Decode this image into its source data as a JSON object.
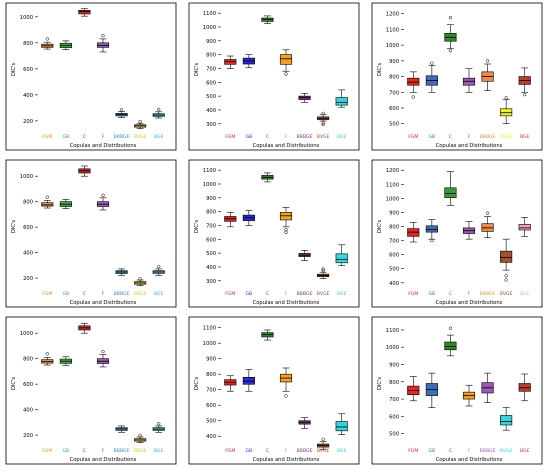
{
  "figure": {
    "panels": 9,
    "layout": "3x3 grid"
  },
  "chart_data": [
    {
      "type": "box",
      "ylabel": "DIC's",
      "xlabel": "Copulas and Distributions",
      "yticks": [
        200,
        400,
        600,
        800,
        1000
      ],
      "ylim": [
        130,
        1060
      ],
      "categories": [
        "FGM",
        "GB",
        "C",
        "F",
        "BBBGE",
        "BVGE",
        "BGE"
      ],
      "colors": [
        "#f28a1f",
        "#3cae3c",
        "#d62728",
        "#9b59b6",
        "#2f8fb8",
        "#e8c21a",
        "#38b7c8"
      ],
      "boxes": [
        {
          "min": 752,
          "q1": 765,
          "median": 777,
          "q3": 790,
          "max": 805,
          "outliers": [
            830
          ]
        },
        {
          "min": 748,
          "q1": 763,
          "median": 780,
          "q3": 797,
          "max": 815,
          "outliers": []
        },
        {
          "min": 1005,
          "q1": 1022,
          "median": 1040,
          "q3": 1050,
          "max": 1062,
          "outliers": []
        },
        {
          "min": 730,
          "q1": 765,
          "median": 780,
          "q3": 800,
          "max": 830,
          "outliers": [
            855
          ]
        },
        {
          "min": 225,
          "q1": 238,
          "median": 248,
          "q3": 258,
          "max": 272,
          "outliers": [
            285
          ]
        },
        {
          "min": 140,
          "q1": 152,
          "median": 162,
          "q3": 170,
          "max": 182,
          "outliers": [
            195
          ]
        },
        {
          "min": 222,
          "q1": 235,
          "median": 245,
          "q3": 255,
          "max": 270,
          "outliers": [
            288
          ]
        }
      ]
    },
    {
      "type": "box",
      "ylabel": "DIC's",
      "xlabel": "Copulas and Distributions",
      "yticks": [
        300,
        400,
        500,
        600,
        700,
        800,
        900,
        1000,
        1100
      ],
      "ylim": [
        255,
        1130
      ],
      "categories": [
        "FGM",
        "GB",
        "C",
        "F",
        "BBBGE",
        "BVGE",
        "BGE"
      ],
      "colors": [
        "#e8241e",
        "#2a2ae0",
        "#2e8b22",
        "#f5a21a",
        "#7b2f86",
        "#a0522d",
        "#33d6e0"
      ],
      "boxes": [
        {
          "min": 700,
          "q1": 730,
          "median": 750,
          "q3": 765,
          "max": 790,
          "outliers": []
        },
        {
          "min": 705,
          "q1": 732,
          "median": 755,
          "q3": 775,
          "max": 800,
          "outliers": []
        },
        {
          "min": 1025,
          "q1": 1040,
          "median": 1055,
          "q3": 1065,
          "max": 1080,
          "outliers": []
        },
        {
          "min": 680,
          "q1": 730,
          "median": 770,
          "q3": 800,
          "max": 835,
          "outliers": [
            660
          ]
        },
        {
          "min": 455,
          "q1": 475,
          "median": 490,
          "q3": 500,
          "max": 520,
          "outliers": []
        },
        {
          "min": 320,
          "q1": 330,
          "median": 340,
          "q3": 350,
          "max": 365,
          "outliers": [
            295,
            305,
            375
          ]
        },
        {
          "min": 420,
          "q1": 435,
          "median": 455,
          "q3": 490,
          "max": 545,
          "outliers": []
        }
      ]
    },
    {
      "type": "box",
      "ylabel": "DIC's",
      "xlabel": "Copulas and Distributions",
      "yticks": [
        500,
        600,
        700,
        800,
        900,
        1000,
        1100,
        1200
      ],
      "ylim": [
        460,
        1230
      ],
      "categories": [
        "FGM",
        "GB",
        "C",
        "F",
        "BBBGE",
        "BVGE",
        "BGE"
      ],
      "colors": [
        "#e8241e",
        "#3d6eb5",
        "#2e8b22",
        "#9b59b6",
        "#f08a3c",
        "#f2f21a",
        "#c0392b"
      ],
      "boxes": [
        {
          "min": 700,
          "q1": 745,
          "median": 765,
          "q3": 790,
          "max": 830,
          "outliers": [
            670
          ]
        },
        {
          "min": 700,
          "q1": 745,
          "median": 775,
          "q3": 805,
          "max": 870,
          "outliers": [
            885
          ]
        },
        {
          "min": 980,
          "q1": 1025,
          "median": 1050,
          "q3": 1075,
          "max": 1130,
          "outliers": [
            1175,
            965
          ]
        },
        {
          "min": 700,
          "q1": 745,
          "median": 770,
          "q3": 790,
          "max": 850,
          "outliers": []
        },
        {
          "min": 710,
          "q1": 770,
          "median": 800,
          "q3": 830,
          "max": 880,
          "outliers": [
            900
          ]
        },
        {
          "min": 500,
          "q1": 550,
          "median": 570,
          "q3": 595,
          "max": 655,
          "outliers": [
            665
          ]
        },
        {
          "min": 700,
          "q1": 750,
          "median": 775,
          "q3": 800,
          "max": 855,
          "outliers": [
            685
          ]
        }
      ]
    },
    {
      "type": "box",
      "ylabel": "DIC's",
      "xlabel": "Copulas and Distributions",
      "yticks": [
        200,
        400,
        600,
        800,
        1000
      ],
      "ylim": [
        130,
        1080
      ],
      "categories": [
        "FGM",
        "GB",
        "C",
        "F",
        "BBBGE",
        "BVGE",
        "BGE"
      ],
      "colors": [
        "#f28a1f",
        "#3cae3c",
        "#d62728",
        "#9b59b6",
        "#2f8fb8",
        "#e8c21a",
        "#38b7c8"
      ],
      "boxes": [
        {
          "min": 750,
          "q1": 765,
          "median": 775,
          "q3": 792,
          "max": 810,
          "outliers": [
            835
          ]
        },
        {
          "min": 745,
          "q1": 762,
          "median": 780,
          "q3": 800,
          "max": 818,
          "outliers": []
        },
        {
          "min": 1000,
          "q1": 1025,
          "median": 1042,
          "q3": 1058,
          "max": 1080,
          "outliers": []
        },
        {
          "min": 735,
          "q1": 762,
          "median": 780,
          "q3": 800,
          "max": 830,
          "outliers": [
            850
          ]
        },
        {
          "min": 222,
          "q1": 236,
          "median": 248,
          "q3": 258,
          "max": 272,
          "outliers": []
        },
        {
          "min": 140,
          "q1": 152,
          "median": 162,
          "q3": 172,
          "max": 185,
          "outliers": [
            195
          ]
        },
        {
          "min": 222,
          "q1": 237,
          "median": 248,
          "q3": 258,
          "max": 272,
          "outliers": [
            290
          ]
        }
      ]
    },
    {
      "type": "box",
      "ylabel": "DIC's",
      "xlabel": "Copulas and Distributions",
      "yticks": [
        300,
        400,
        500,
        600,
        700,
        800,
        900,
        1000,
        1100
      ],
      "ylim": [
        255,
        1130
      ],
      "categories": [
        "FGM",
        "GB",
        "C",
        "F",
        "BBBGE",
        "BVGE",
        "BGE"
      ],
      "colors": [
        "#e8241e",
        "#2a2ae0",
        "#2e8b22",
        "#f5a21a",
        "#7b2f86",
        "#a0522d",
        "#33d6e0"
      ],
      "boxes": [
        {
          "min": 690,
          "q1": 730,
          "median": 748,
          "q3": 765,
          "max": 795,
          "outliers": []
        },
        {
          "min": 700,
          "q1": 735,
          "median": 755,
          "q3": 775,
          "max": 810,
          "outliers": []
        },
        {
          "min": 1015,
          "q1": 1035,
          "median": 1048,
          "q3": 1062,
          "max": 1080,
          "outliers": []
        },
        {
          "min": 690,
          "q1": 740,
          "median": 770,
          "q3": 795,
          "max": 830,
          "outliers": [
            670,
            650
          ]
        },
        {
          "min": 445,
          "q1": 475,
          "median": 485,
          "q3": 498,
          "max": 520,
          "outliers": []
        },
        {
          "min": 315,
          "q1": 330,
          "median": 338,
          "q3": 348,
          "max": 362,
          "outliers": [
            375,
            385
          ]
        },
        {
          "min": 410,
          "q1": 430,
          "median": 455,
          "q3": 495,
          "max": 560,
          "outliers": []
        }
      ]
    },
    {
      "type": "box",
      "ylabel": "DIC's",
      "xlabel": "Copulas and Distributions",
      "yticks": [
        400,
        500,
        600,
        700,
        800,
        900,
        1000,
        1100,
        1200
      ],
      "ylim": [
        370,
        1230
      ],
      "categories": [
        "FGM",
        "GB",
        "C",
        "F",
        "BBBGE",
        "BVGE",
        "BGE"
      ],
      "colors": [
        "#e8241e",
        "#3d6eb5",
        "#3a9a3a",
        "#9b59b6",
        "#f08a3c",
        "#a0522d",
        "#f49ac1"
      ],
      "boxes": [
        {
          "min": 690,
          "q1": 730,
          "median": 760,
          "q3": 785,
          "max": 830,
          "outliers": []
        },
        {
          "min": 710,
          "q1": 760,
          "median": 780,
          "q3": 805,
          "max": 850,
          "outliers": [
            700
          ]
        },
        {
          "min": 950,
          "q1": 1005,
          "median": 1035,
          "q3": 1075,
          "max": 1190,
          "outliers": []
        },
        {
          "min": 710,
          "q1": 750,
          "median": 770,
          "q3": 790,
          "max": 835,
          "outliers": []
        },
        {
          "min": 720,
          "q1": 765,
          "median": 790,
          "q3": 820,
          "max": 870,
          "outliers": [
            895
          ]
        },
        {
          "min": 490,
          "q1": 545,
          "median": 580,
          "q3": 625,
          "max": 710,
          "outliers": [
            420,
            450
          ]
        },
        {
          "min": 730,
          "q1": 775,
          "median": 790,
          "q3": 815,
          "max": 865,
          "outliers": []
        }
      ]
    },
    {
      "type": "box",
      "ylabel": "DIC's",
      "xlabel": "Copulas and Distributions",
      "yticks": [
        200,
        400,
        600,
        800,
        1000
      ],
      "ylim": [
        130,
        1080
      ],
      "categories": [
        "FGM",
        "GB",
        "C",
        "F",
        "BBBGE",
        "BVGE",
        "BGE"
      ],
      "colors": [
        "#f28a1f",
        "#3cae3c",
        "#d62728",
        "#9b59b6",
        "#2f8fb8",
        "#e8c21a",
        "#38b7c8"
      ],
      "boxes": [
        {
          "min": 750,
          "q1": 765,
          "median": 777,
          "q3": 792,
          "max": 810,
          "outliers": [
            838
          ]
        },
        {
          "min": 748,
          "q1": 763,
          "median": 780,
          "q3": 797,
          "max": 815,
          "outliers": []
        },
        {
          "min": 1000,
          "q1": 1025,
          "median": 1042,
          "q3": 1058,
          "max": 1078,
          "outliers": []
        },
        {
          "min": 735,
          "q1": 762,
          "median": 780,
          "q3": 800,
          "max": 832,
          "outliers": [
            855
          ]
        },
        {
          "min": 222,
          "q1": 237,
          "median": 248,
          "q3": 258,
          "max": 272,
          "outliers": []
        },
        {
          "min": 140,
          "q1": 152,
          "median": 162,
          "q3": 172,
          "max": 185,
          "outliers": [
            198
          ]
        },
        {
          "min": 222,
          "q1": 237,
          "median": 247,
          "q3": 258,
          "max": 272,
          "outliers": [
            290
          ]
        }
      ]
    },
    {
      "type": "box",
      "ylabel": "DIC's",
      "xlabel": "Copulas and Distributions",
      "yticks": [
        400,
        500,
        600,
        700,
        800,
        900,
        1000,
        1100
      ],
      "ylim": [
        350,
        1130
      ],
      "categories": [
        "FGM",
        "GB",
        "C",
        "F",
        "BBBGE",
        "BVGE",
        "BGE"
      ],
      "colors": [
        "#e8241e",
        "#2a2ae0",
        "#2e8b22",
        "#f5a21a",
        "#7b2f86",
        "#a0522d",
        "#33d6e0"
      ],
      "boxes": [
        {
          "min": 690,
          "q1": 730,
          "median": 748,
          "q3": 765,
          "max": 790,
          "outliers": []
        },
        {
          "min": 690,
          "q1": 735,
          "median": 755,
          "q3": 780,
          "max": 830,
          "outliers": []
        },
        {
          "min": 1020,
          "q1": 1040,
          "median": 1055,
          "q3": 1068,
          "max": 1085,
          "outliers": []
        },
        {
          "min": 690,
          "q1": 750,
          "median": 775,
          "q3": 800,
          "max": 840,
          "outliers": [
            660
          ]
        },
        {
          "min": 450,
          "q1": 478,
          "median": 490,
          "q3": 500,
          "max": 520,
          "outliers": []
        },
        {
          "min": 315,
          "q1": 330,
          "median": 340,
          "q3": 350,
          "max": 365,
          "outliers": [
            380
          ]
        },
        {
          "min": 410,
          "q1": 435,
          "median": 460,
          "q3": 495,
          "max": 545,
          "outliers": []
        }
      ]
    },
    {
      "type": "box",
      "ylabel": "DIC's",
      "xlabel": "Copulas and Distributions",
      "yticks": [
        500,
        600,
        700,
        800,
        900,
        1000,
        1100
      ],
      "ylim": [
        440,
        1140
      ],
      "categories": [
        "FGM",
        "GB",
        "C",
        "F",
        "BBBGE",
        "BVGE",
        "BGE"
      ],
      "colors": [
        "#e8241e",
        "#3d6eb5",
        "#2e8b22",
        "#f5a21a",
        "#9b59b6",
        "#33d6e0",
        "#c0392b"
      ],
      "boxes": [
        {
          "min": 690,
          "q1": 725,
          "median": 750,
          "q3": 775,
          "max": 830,
          "outliers": []
        },
        {
          "min": 650,
          "q1": 720,
          "median": 755,
          "q3": 790,
          "max": 850,
          "outliers": []
        },
        {
          "min": 950,
          "q1": 985,
          "median": 1005,
          "q3": 1030,
          "max": 1070,
          "outliers": [
            1110
          ]
        },
        {
          "min": 660,
          "q1": 700,
          "median": 720,
          "q3": 740,
          "max": 780,
          "outliers": []
        },
        {
          "min": 680,
          "q1": 735,
          "median": 765,
          "q3": 795,
          "max": 850,
          "outliers": []
        },
        {
          "min": 520,
          "q1": 550,
          "median": 570,
          "q3": 605,
          "max": 650,
          "outliers": []
        },
        {
          "min": 690,
          "q1": 745,
          "median": 765,
          "q3": 790,
          "max": 845,
          "outliers": []
        }
      ]
    }
  ]
}
